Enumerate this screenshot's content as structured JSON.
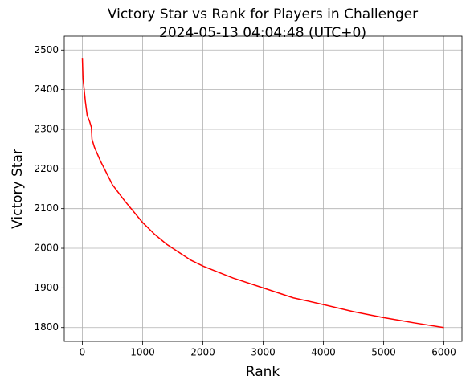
{
  "chart_data": {
    "type": "line",
    "title": "Victory Star vs Rank for Players in Challenger",
    "subtitle": "2024-05-13 04:04:48 (UTC+0)",
    "x_label": "Rank",
    "y_label": "Victory Star",
    "x": [
      0,
      10,
      30,
      50,
      80,
      120,
      150,
      160,
      200,
      300,
      400,
      500,
      700,
      1000,
      1200,
      1400,
      1600,
      1800,
      2000,
      2500,
      3000,
      3500,
      4000,
      4500,
      5000,
      5500,
      6000
    ],
    "series": [
      {
        "name": "Victory Star",
        "color": "#ff0000",
        "values": [
          2480,
          2430,
          2400,
          2370,
          2335,
          2320,
          2305,
          2275,
          2255,
          2220,
          2190,
          2160,
          2120,
          2065,
          2035,
          2010,
          1990,
          1970,
          1955,
          1925,
          1900,
          1875,
          1858,
          1840,
          1825,
          1812,
          1800
        ]
      }
    ],
    "xlim": [
      -300,
      6300
    ],
    "ylim": [
      1765,
      2535
    ],
    "xticks": [
      0,
      1000,
      2000,
      3000,
      4000,
      5000,
      6000
    ],
    "yticks": [
      1800,
      1900,
      2000,
      2100,
      2200,
      2300,
      2400,
      2500
    ],
    "grid": true
  }
}
